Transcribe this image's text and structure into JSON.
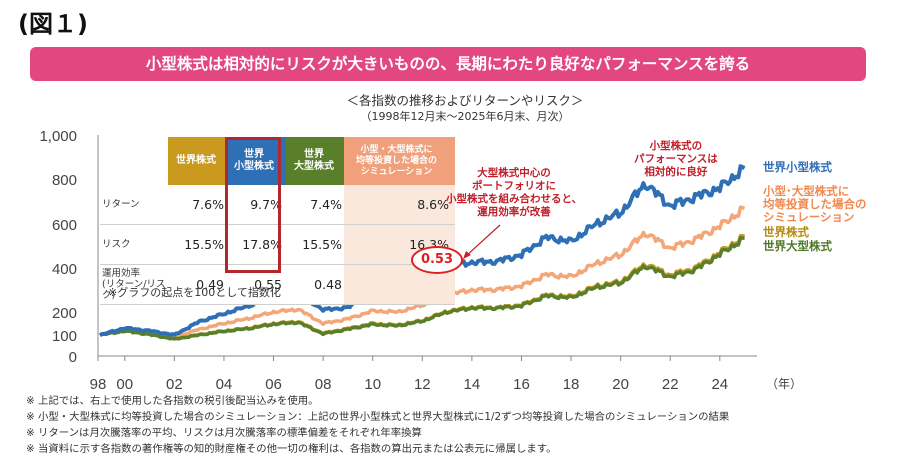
{
  "figure_label": "(図１)",
  "banner": "小型株式は相対的にリスクが大きいものの、長期にわたり良好なパフォーマンスを誇る",
  "subtitle": "＜各指数の推移およびリターンやリスク＞",
  "subtitle_period": "（1998年12月末～2025年6月末、月次）",
  "table": {
    "columns": [
      "世界株式",
      "世界\n小型株式",
      "世界\n大型株式",
      "小型・大型株式に\n均等投資した場合の\nシミュレーション"
    ],
    "column_colors": [
      "#c99a1e",
      "#2f6fb5",
      "#5a7f2a",
      "#f0a07a"
    ],
    "rows": [
      {
        "label": "リターン",
        "values": [
          "7.6%",
          "9.7%",
          "7.4%",
          "8.6%"
        ]
      },
      {
        "label": "リスク",
        "values": [
          "15.5%",
          "17.8%",
          "15.5%",
          "16.3%"
        ]
      },
      {
        "label": "運用効率\n(リターン/リスク)",
        "values": [
          "0.49",
          "0.55",
          "0.48",
          ""
        ]
      }
    ],
    "sim_efficiency": "0.53"
  },
  "base_note": "※グラフの起点を100として指数化",
  "annotation_center": "大型株式中心の\nポートフォリオに\n小型株式を組み合わせると、\n運用効率が改善",
  "annotation_top": "小型株式の\nパフォーマンスは\n相対的に良好",
  "legend_labels": {
    "small": "世界小型株式",
    "sim": "小型･大型株式に\n均等投資した場合の\nシミュレーション",
    "world": "世界株式",
    "large": "世界大型株式"
  },
  "notes": [
    "※ 上記では、右上で使用した各指数の税引後配当込みを使用。",
    "※ 小型・大型株式に均等投資した場合のシミュレーション：上記の世界小型株式と世界大型株式に1/2ずつ均等投資した場合のシミュレーションの結果",
    "※ リターンは月次騰落率の平均、リスクは月次騰落率の標準偏差をそれぞれ年率換算",
    "※ 当資料に示す各指数の著作権等の知的財産権その他一切の権利は、各指数の算出元または公表元に帰属します。"
  ],
  "chart_data": {
    "type": "line",
    "title": "各指数の推移およびリターンやリスク",
    "x_unit": "（年）",
    "xlim": [
      1998.92,
      2025.5
    ],
    "ylim": [
      0,
      1000
    ],
    "y_ticks": [
      "0",
      "100",
      "200",
      "400",
      "600",
      "800",
      "1,000"
    ],
    "x_ticks": [
      "98",
      "00",
      "02",
      "04",
      "06",
      "08",
      "10",
      "12",
      "14",
      "16",
      "18",
      "20",
      "22",
      "24"
    ],
    "x": [
      1999,
      2000,
      2001,
      2002,
      2003,
      2004,
      2005,
      2006,
      2007,
      2008,
      2009,
      2010,
      2011,
      2012,
      2013,
      2014,
      2015,
      2016,
      2017,
      2018,
      2019,
      2020,
      2021,
      2022,
      2023,
      2024,
      2025
    ],
    "series": [
      {
        "name": "世界小型株式",
        "color": "#2f6fb5",
        "values": [
          100,
          130,
          118,
          100,
          158,
          192,
          228,
          270,
          285,
          210,
          220,
          290,
          285,
          330,
          410,
          425,
          430,
          460,
          540,
          520,
          600,
          650,
          780,
          680,
          720,
          760,
          850
        ]
      },
      {
        "name": "小型･大型株式に均等投資した場合のシミュレーション",
        "color": "#f4a678",
        "values": [
          100,
          122,
          110,
          90,
          125,
          150,
          172,
          200,
          212,
          150,
          170,
          205,
          200,
          230,
          280,
          300,
          302,
          318,
          370,
          360,
          420,
          460,
          560,
          490,
          530,
          590,
          670
        ]
      },
      {
        "name": "世界株式",
        "color": "#c99a1e",
        "values": [
          100,
          118,
          103,
          82,
          102,
          118,
          130,
          150,
          158,
          108,
          128,
          150,
          143,
          163,
          203,
          222,
          220,
          232,
          278,
          270,
          318,
          338,
          418,
          368,
          400,
          470,
          545
        ]
      },
      {
        "name": "世界大型株式",
        "color": "#5a7f2a",
        "values": [
          100,
          117,
          102,
          80,
          100,
          116,
          128,
          147,
          155,
          105,
          125,
          146,
          140,
          160,
          200,
          218,
          217,
          228,
          273,
          265,
          312,
          332,
          410,
          360,
          392,
          462,
          535
        ]
      }
    ]
  }
}
